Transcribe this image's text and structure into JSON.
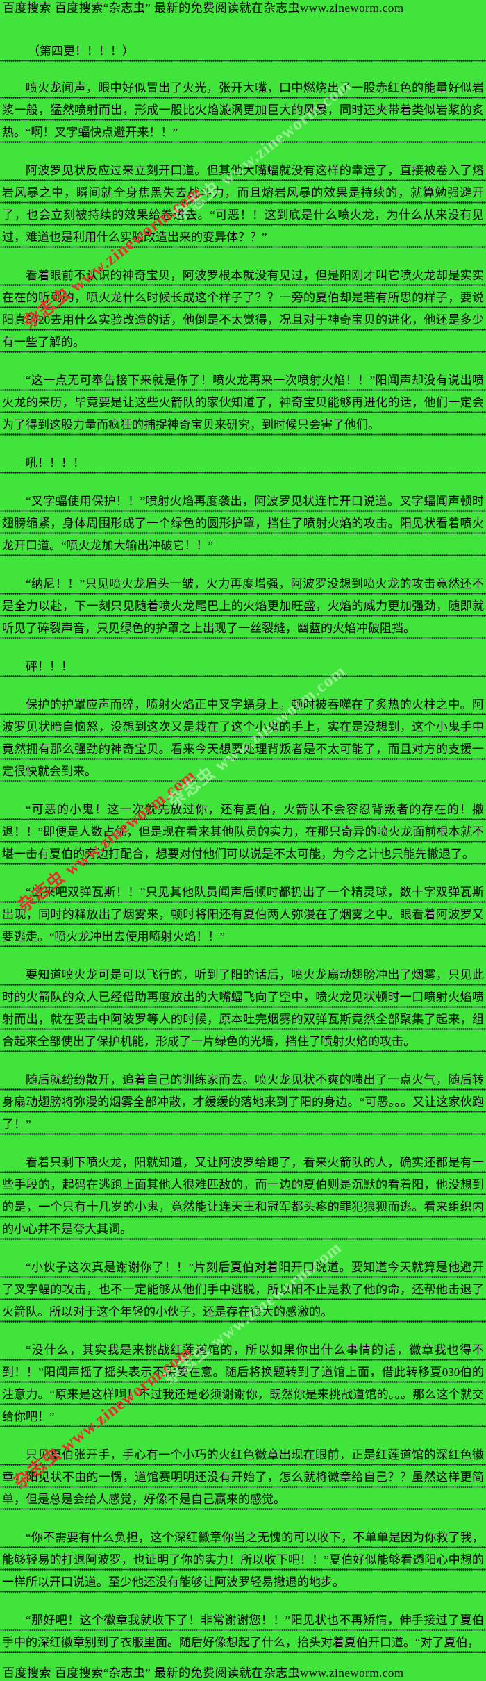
{
  "page": {
    "colors": {
      "background": "#41e43a",
      "text": "#000000",
      "watermark_red": "#e13231"
    },
    "header_promo": "百度搜索  百度搜索“杂志虫”  最新的免费阅读就在杂志虫www.zineworm.com",
    "footer_promo": "百度搜索  百度搜索“杂志虫”  最新的免费阅读就在杂志虫www.zineworm.com",
    "chapter_note": "（第四更！！！！）",
    "watermark_text": "杂志虫 www.zineworm.com",
    "paragraphs": [
      "喷火龙闻声，眼中好似冒出了火光，张开大嘴，口中燃烧出了一股赤红色的能量好似岩浆一般，猛然喷射而出，形成一股比火焰漩涡更加巨大的风暴，同时还夹带着类似岩浆的炙热。“啊！叉字蝠快点避开来！！”",
      "阿波罗见状反应过来立刻开口道。但其他大嘴蝠就没有这样的幸运了，直接被卷入了熔岩风暴之中，瞬间就全身焦黑失去战斗力，而且熔岩风暴的效果是持续的，就算勉强避开了，也会立刻被持续的效果给卷进去。“可恶！！这到底是什么喷火龙，为什么从来没有见过，难道也是利用什么实验改造出来的变异体？？”",
      "看着眼前不认识的神奇宝贝，阿波罗根本就没有见过，但是阳刚才叫它喷火龙却是实实在在的听到的，喷火龙什么时候长成这个样子了？？一旁的夏伯却是若有所思的样子，要说阳真的20去用什么实验改造的话，他倒是不太觉得，况且对于神奇宝贝的进化，他还是多少有一些了解的。",
      "“这一点无可奉告接下来就是你了！喷火龙再来一次喷射火焰！！”阳闻声却没有说出喷火龙的来历，毕竟要是让这些火箭队的家伙知道了，神奇宝贝能够再进化的话，他们一定会为了得到这股力量而疯狂的捕捉神奇宝贝来研究，到时候只会害了他们。",
      "吼！！！！",
      "“叉字蝠使用保护！！”喷射火焰再度袭出，阿波罗见状连忙开口说道。叉字蝠闻声顿时翅膀缩紧，身体周围形成了一个绿色的圆形护罩，挡住了喷射火焰的攻击。阳见状看着喷火龙开口道。“喷火龙加大输出冲破它！！”",
      "“纳尼！！”只见喷火龙眉头一皱，火力再度增强，阿波罗没想到喷火龙的攻击竟然还不是全力以赴，下一刻只见随着喷火龙尾巴上的火焰更加旺盛，火焰的威力更加强劲，随即就听见了碎裂声音，只见绿色的护罩之上出现了一丝裂缝，幽蓝的火焰冲破阻挡。",
      "砰！！！",
      "保护的护罩应声而碎，喷射火焰正中叉字蝠身上。顿时被吞噬在了炙热的火柱之中。阿波罗见状暗自恼怒，没想到这次又是栽在了这个小鬼的手上，实在是没想到，这个小鬼手中竟然拥有那么强劲的神奇宝贝。看来今天想要处理背叛者是不太可能了，而且对方的支援一定很快就会到来。",
      "“可恶的小鬼！这一次就先放过你，还有夏伯，火箭队不会容忍背叛者的存在的！撤退！！”即便是人数占优，但是现在看来其他队员的实力，在那只奇异的喷火龙面前根本就不堪一击有夏伯的旁边打配合，想要对付他们可以说是不太可能，为今之计也只能先撤退了。",
      "“出来吧双弹瓦斯！！”只见其他队员闻声后顿时都扔出了一个精灵球，数十字双弹瓦斯出现，同时的释放出了烟雾来，顿时将阳还有夏伯两人弥漫在了烟雾之中。眼看着阿波罗又要逃走。“喷火龙冲出去使用喷射火焰！！”",
      "要知道喷火龙可是可以飞行的，听到了阳的话后，喷火龙扇动翅膀冲出了烟雾，只见此时的火箭队的众人已经借助再度放出的大嘴蝠飞向了空中，喷火龙见状顿时一口喷射火焰喷射而出，就在要击中阿波罗等人的时候，原本吐完烟雾的双弹瓦斯竟然全部聚集了起来，组合起来全部使出了保护机能，形成了一片绿色的光墙，挡住了喷射火焰的攻击。",
      "随后就纷纷散开，追着自己的训练家而去。喷火龙见状不爽的嗤出了一点火气，随后转身扇动翅膀将弥漫的烟雾全部冲散，才缓缓的落地来到了阳的身边。“可恶。。。又让这家伙跑了！”",
      "看着只剩下喷火龙，阳就知道，又让阿波罗给跑了，看来火箭队的人，确实还都是有一些手段的，起码在逃跑上面其他人很难匹敌的。而一边的夏伯则是沉默的看着阳，他没想到的是，一个只有十几岁的小鬼，竟然能让连天王和冠军都头疼的罪犯狼狈而逃。看来组织内的小心并不是夸大其词。",
      "“小伙子这次真是谢谢你了！！”片刻后夏伯对着阳开口说道。要知道今天就算是他避开了叉字蝠的攻击，也不一定能够从他们手中逃脱，所以阳不止是救了他的命，还帮他击退了火箭队。所以对于这个年轻的小伙子，还是存在很大的感激的。",
      "“没什么，其实我是来挑战红莲道馆的，所以如果你出什么事情的话，徽章我也得不到！！”阳闻声摇了摇头表示不需要在意。随后将换题转到了道馆上面，借此转移夏030伯的注意力。“原来是这样啊！不过我还是必须谢谢你，既然你是来挑战道馆的。。。那么这个就交给你吧！”",
      "只见夏伯张开手，手心有一个小巧的火红色徽章出现在眼前，正是红莲道馆的深红色徽章，阳见状不由的一愣，道馆赛明明还没有开始了，怎么就将徽章给自己？？虽然这样更简单，但是总是会给人感觉，好像不是自己赢来的感觉。",
      "“你不需要有什么负担，这个深红徽章你当之无愧的可以收下，不单单是因为你救了我，能够轻易的打退阿波罗，也证明了你的实力！所以收下吧！！”夏伯好似能够看透阳心中想的一样所以开口说道。至少他还没有能够让阿波罗轻易撤退的地步。",
      "“那好吧！这个徽章我就收下了！非常谢谢您！！”阳见状也不再矫情，伸手接过了夏伯手中的深红徽章别到了衣服里面。随后好像想起了什么，抬头对着夏伯开口道。“对了夏伯，"
    ]
  }
}
